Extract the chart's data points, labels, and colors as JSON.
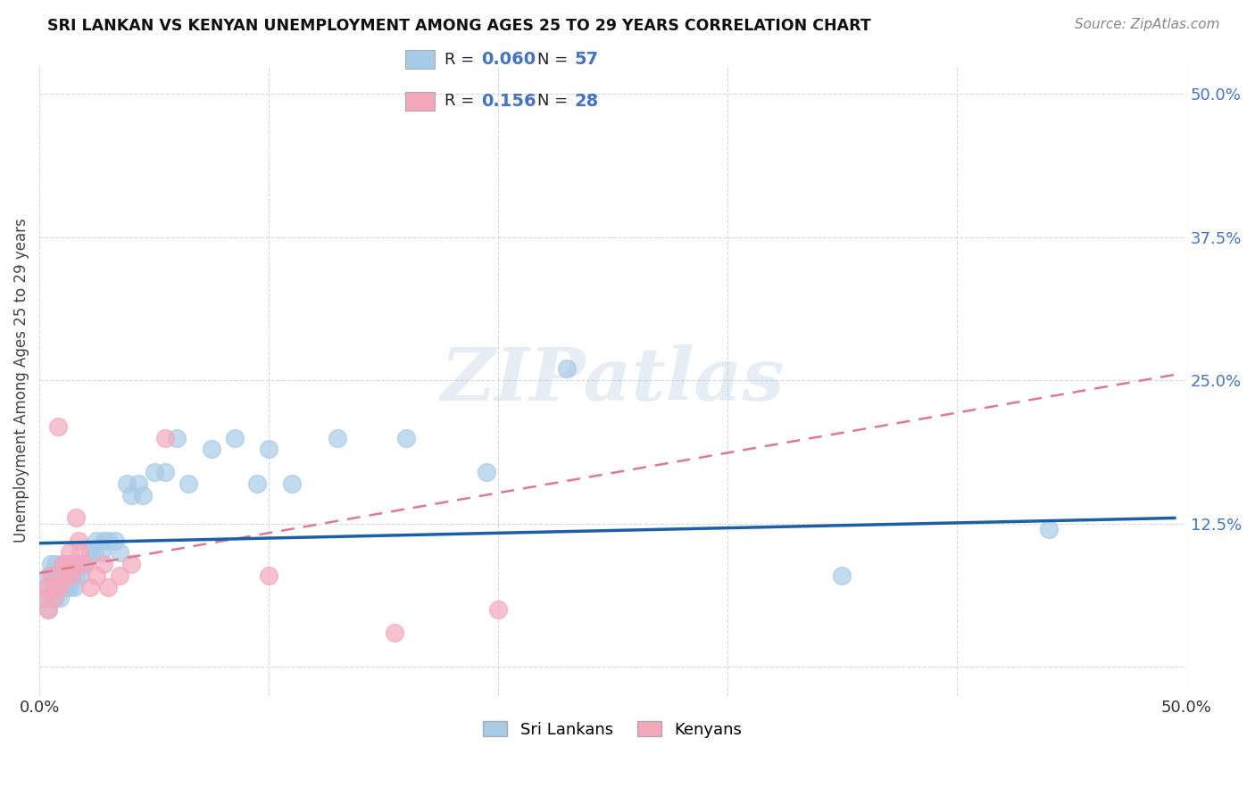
{
  "title": "SRI LANKAN VS KENYAN UNEMPLOYMENT AMONG AGES 25 TO 29 YEARS CORRELATION CHART",
  "source": "Source: ZipAtlas.com",
  "ylabel": "Unemployment Among Ages 25 to 29 years",
  "xlim": [
    0.0,
    0.5
  ],
  "ylim": [
    -0.025,
    0.525
  ],
  "ytick_right_vals": [
    0.0,
    0.125,
    0.25,
    0.375,
    0.5
  ],
  "ytick_right_labels": [
    "",
    "12.5%",
    "25.0%",
    "37.5%",
    "50.0%"
  ],
  "sri_lankans_label": "Sri Lankans",
  "kenyans_label": "Kenyans",
  "r_sri": "0.060",
  "n_sri": "57",
  "r_ken": "0.156",
  "n_ken": "28",
  "color_sri": "#a8cce8",
  "color_ken": "#f4a8bc",
  "line_color_sri": "#1a5fa8",
  "line_color_ken": "#e07890",
  "watermark_text": "ZIPatlas",
  "background_color": "#ffffff",
  "grid_color": "#d8d8d8",
  "sri_x": [
    0.002,
    0.003,
    0.004,
    0.004,
    0.005,
    0.005,
    0.006,
    0.006,
    0.007,
    0.007,
    0.008,
    0.008,
    0.009,
    0.009,
    0.01,
    0.01,
    0.011,
    0.011,
    0.012,
    0.012,
    0.013,
    0.013,
    0.014,
    0.015,
    0.015,
    0.016,
    0.017,
    0.018,
    0.019,
    0.02,
    0.022,
    0.024,
    0.025,
    0.027,
    0.028,
    0.03,
    0.033,
    0.035,
    0.038,
    0.04,
    0.043,
    0.045,
    0.05,
    0.055,
    0.06,
    0.065,
    0.075,
    0.085,
    0.095,
    0.1,
    0.11,
    0.13,
    0.16,
    0.195,
    0.23,
    0.35,
    0.44
  ],
  "sri_y": [
    0.06,
    0.07,
    0.05,
    0.08,
    0.06,
    0.09,
    0.07,
    0.08,
    0.06,
    0.09,
    0.07,
    0.08,
    0.06,
    0.07,
    0.08,
    0.09,
    0.07,
    0.08,
    0.07,
    0.09,
    0.08,
    0.07,
    0.08,
    0.09,
    0.07,
    0.08,
    0.09,
    0.08,
    0.09,
    0.09,
    0.1,
    0.1,
    0.11,
    0.1,
    0.11,
    0.11,
    0.11,
    0.1,
    0.16,
    0.15,
    0.16,
    0.15,
    0.17,
    0.17,
    0.2,
    0.16,
    0.19,
    0.2,
    0.16,
    0.19,
    0.16,
    0.2,
    0.2,
    0.17,
    0.26,
    0.08,
    0.12
  ],
  "ken_x": [
    0.002,
    0.003,
    0.004,
    0.005,
    0.006,
    0.007,
    0.008,
    0.009,
    0.01,
    0.011,
    0.012,
    0.013,
    0.014,
    0.015,
    0.016,
    0.017,
    0.018,
    0.02,
    0.022,
    0.025,
    0.028,
    0.03,
    0.035,
    0.04,
    0.055,
    0.1,
    0.155,
    0.2
  ],
  "ken_y": [
    0.06,
    0.07,
    0.05,
    0.08,
    0.06,
    0.07,
    0.21,
    0.07,
    0.09,
    0.08,
    0.09,
    0.1,
    0.08,
    0.09,
    0.13,
    0.11,
    0.1,
    0.09,
    0.07,
    0.08,
    0.09,
    0.07,
    0.08,
    0.09,
    0.2,
    0.08,
    0.03,
    0.05
  ],
  "sri_line_x0": 0.0,
  "sri_line_x1": 0.495,
  "sri_line_y0": 0.108,
  "sri_line_y1": 0.13,
  "ken_line_x0": 0.0,
  "ken_line_x1": 0.495,
  "ken_line_y0": 0.082,
  "ken_line_y1": 0.255
}
